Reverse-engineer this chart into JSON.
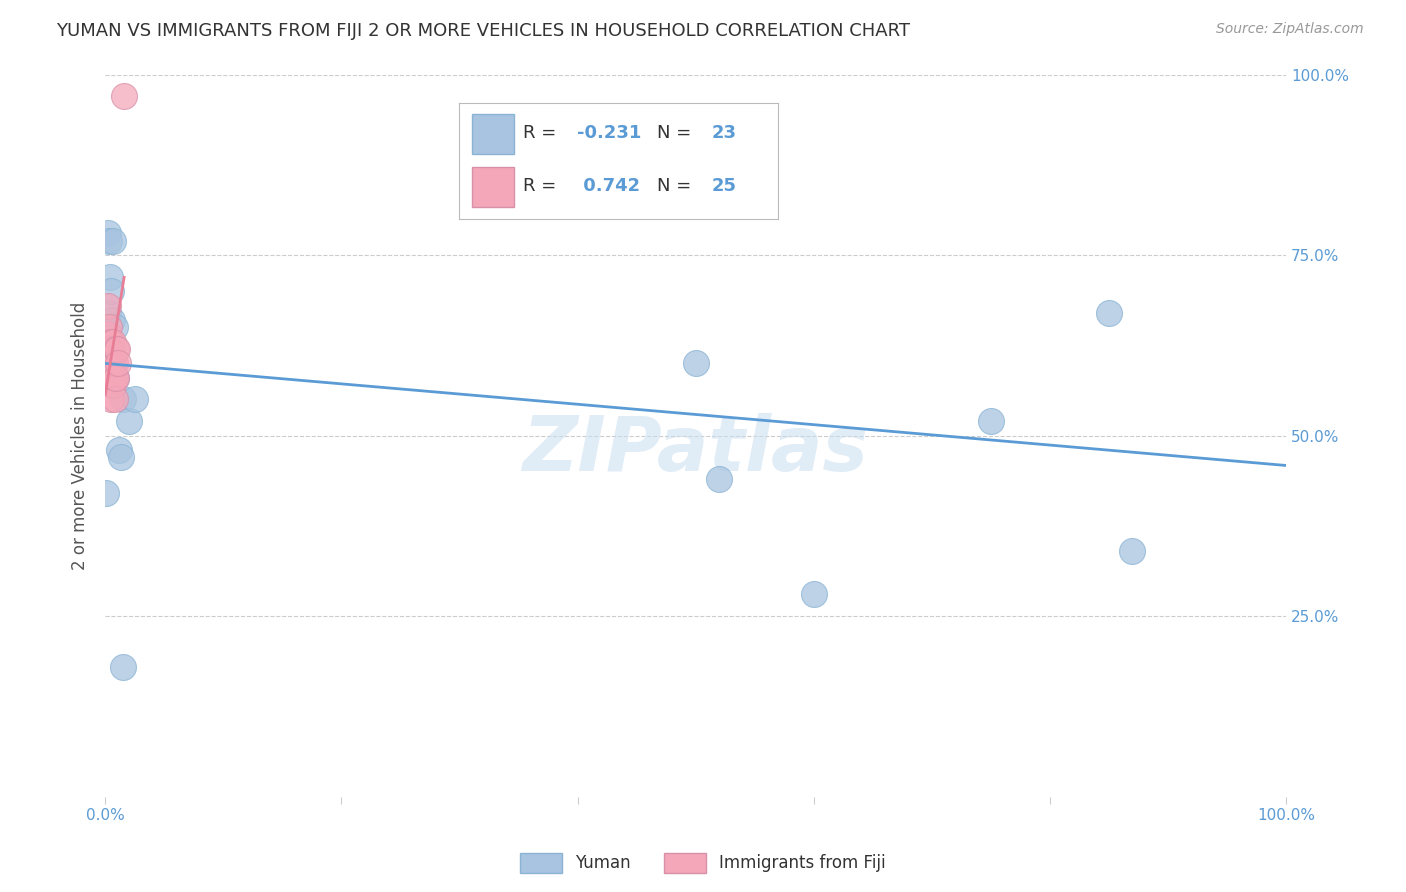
{
  "title": "YUMAN VS IMMIGRANTS FROM FIJI 2 OR MORE VEHICLES IN HOUSEHOLD CORRELATION CHART",
  "source": "Source: ZipAtlas.com",
  "ylabel": "2 or more Vehicles in Household",
  "xlim": [
    0,
    1.0
  ],
  "ylim": [
    0,
    1.0
  ],
  "color_blue": "#a8c4e0",
  "color_pink": "#f4a7b9",
  "color_blue_line": "#5b9bd5",
  "color_pink_line": "#e87d96",
  "legend_label1": "Yuman",
  "legend_label2": "Immigrants from Fiji",
  "yuman_x": [
    0.001,
    0.002,
    0.002,
    0.003,
    0.004,
    0.005,
    0.006,
    0.007,
    0.008,
    0.009,
    0.012,
    0.013,
    0.015,
    0.02,
    0.025,
    0.35,
    0.5,
    0.52,
    0.6,
    0.75,
    0.85,
    0.87,
    0.015
  ],
  "yuman_y": [
    0.42,
    0.78,
    0.67,
    0.77,
    0.72,
    0.7,
    0.66,
    0.77,
    0.65,
    0.58,
    0.48,
    0.47,
    0.55,
    0.52,
    0.55,
    0.83,
    0.6,
    0.44,
    0.28,
    0.52,
    0.67,
    0.34,
    0.18
  ],
  "fiji_x": [
    0.001,
    0.002,
    0.002,
    0.003,
    0.003,
    0.004,
    0.004,
    0.005,
    0.005,
    0.005,
    0.005,
    0.006,
    0.006,
    0.007,
    0.007,
    0.007,
    0.007,
    0.008,
    0.008,
    0.008,
    0.009,
    0.009,
    0.01,
    0.011,
    0.016
  ],
  "fiji_y": [
    0.63,
    0.64,
    0.68,
    0.62,
    0.65,
    0.6,
    0.62,
    0.6,
    0.63,
    0.58,
    0.55,
    0.58,
    0.62,
    0.6,
    0.63,
    0.6,
    0.57,
    0.58,
    0.6,
    0.55,
    0.62,
    0.58,
    0.62,
    0.6,
    0.97
  ],
  "background_color": "#ffffff",
  "grid_color": "#cccccc"
}
